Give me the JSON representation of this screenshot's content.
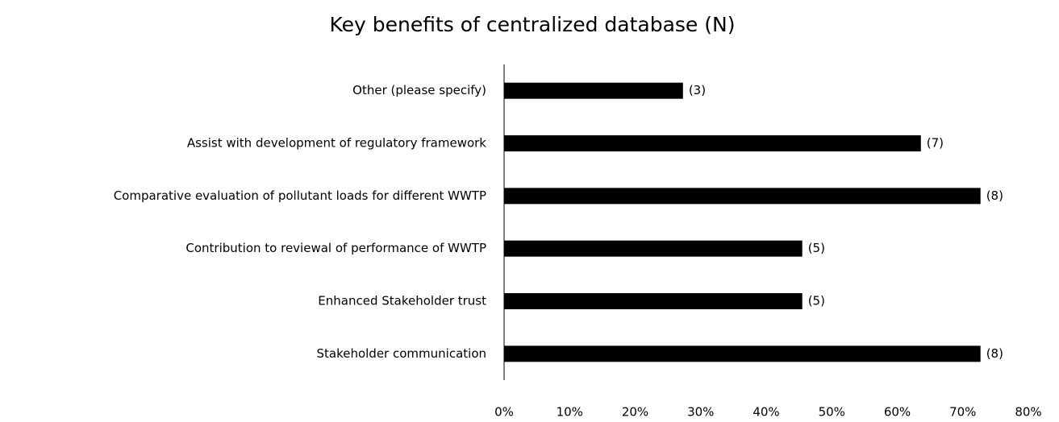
{
  "chart_data": {
    "type": "barh",
    "title": "Key benefits of centralized database (N)",
    "categories": [
      "Other (please specify)",
      "Assist with development of regulatory framework",
      "Comparative evaluation of pollutant loads for different WWTP",
      "Contribution to reviewal of performance of WWTP",
      "Enhanced Stakeholder trust",
      "Stakeholder communication"
    ],
    "values": [
      27.3,
      63.6,
      72.7,
      45.5,
      45.5,
      72.7
    ],
    "annotations": [
      "(3)",
      "(7)",
      "(8)",
      "(5)",
      "(5)",
      "(8)"
    ],
    "color": "#000000",
    "xlim": [
      0,
      80
    ],
    "xticks": [
      {
        "value": 0,
        "label": "0%"
      },
      {
        "value": 10,
        "label": "10%"
      },
      {
        "value": 20,
        "label": "20%"
      },
      {
        "value": 30,
        "label": "30%"
      },
      {
        "value": 40,
        "label": "40%"
      },
      {
        "value": 50,
        "label": "50%"
      },
      {
        "value": 60,
        "label": "60%"
      },
      {
        "value": 70,
        "label": "70%"
      },
      {
        "value": 80,
        "label": "80%"
      }
    ],
    "grid": false
  }
}
